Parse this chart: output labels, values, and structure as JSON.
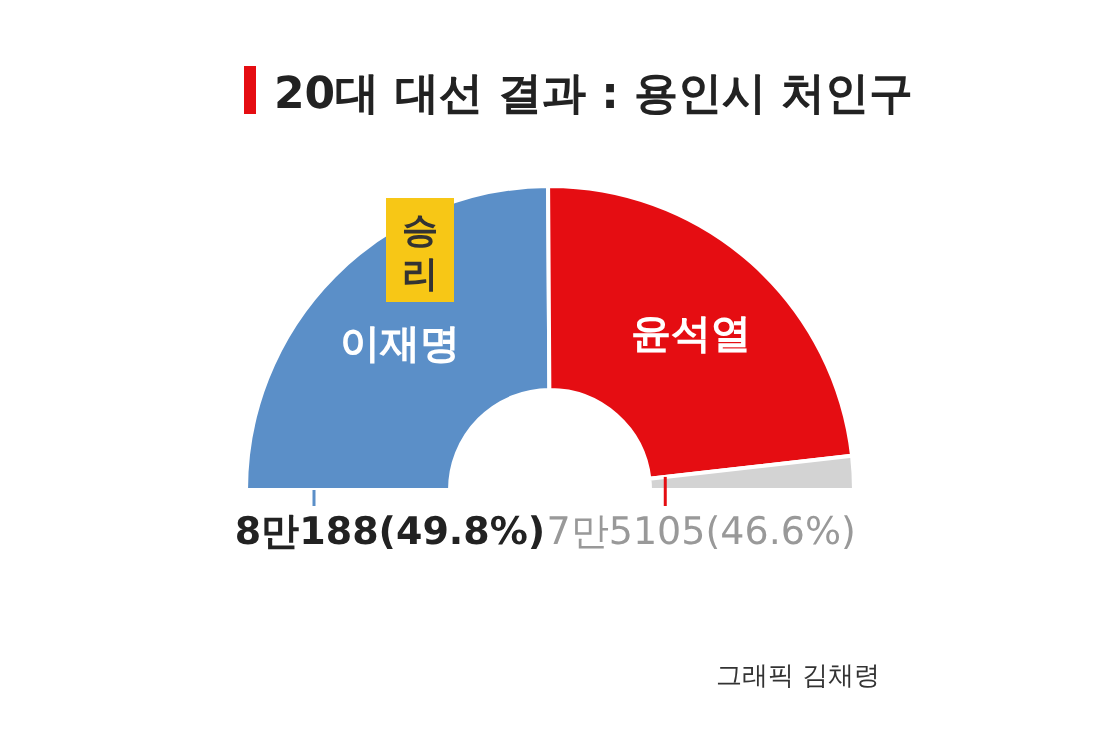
{
  "chart_data": {
    "type": "donut",
    "title": "20대 대선 결과 : 용인시 처인구",
    "categories": [
      "이재명",
      "윤석열",
      null
    ],
    "values": [
      49.8,
      46.6,
      3.6
    ],
    "colors": [
      "#5b8fc8",
      "#e50d12",
      "#d3d3d3"
    ],
    "value_labels": [
      "8만188(49.8%)",
      "7만5105(46.6%)",
      null
    ],
    "annotations": [
      "승리",
      "그래픽 김채령"
    ]
  }
}
